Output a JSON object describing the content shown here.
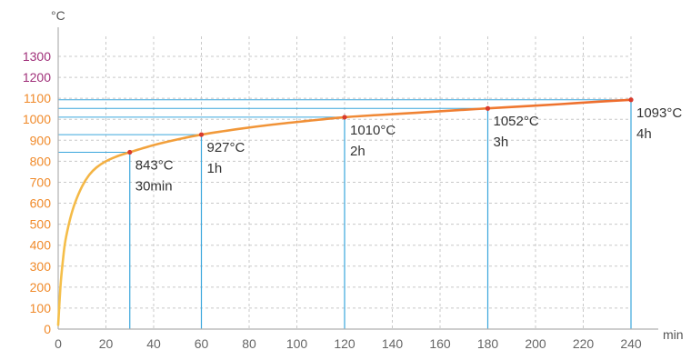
{
  "chart_data": {
    "type": "line",
    "x_unit": "min",
    "y_unit": "°C",
    "xlim": [
      0,
      240
    ],
    "ylim": [
      0,
      1300
    ],
    "x_ticks": [
      0,
      20,
      40,
      60,
      80,
      100,
      120,
      140,
      160,
      180,
      200,
      220,
      240
    ],
    "y_ticks": [
      0,
      100,
      200,
      300,
      400,
      500,
      600,
      700,
      800,
      900,
      1000,
      1100,
      1200,
      1300
    ],
    "grid": true,
    "series": [
      {
        "color_start": "#f5c04a",
        "color_end": "#ee6a2c",
        "points": [
          [
            0,
            20
          ],
          [
            1,
            210
          ],
          [
            2,
            330
          ],
          [
            3,
            420
          ],
          [
            5,
            525
          ],
          [
            7,
            600
          ],
          [
            10,
            680
          ],
          [
            13,
            735
          ],
          [
            16,
            770
          ],
          [
            20,
            800
          ],
          [
            25,
            825
          ],
          [
            30,
            843
          ],
          [
            40,
            877
          ],
          [
            50,
            904
          ],
          [
            60,
            927
          ],
          [
            75,
            953
          ],
          [
            90,
            975
          ],
          [
            105,
            993
          ],
          [
            120,
            1010
          ],
          [
            135,
            1021
          ],
          [
            150,
            1031
          ],
          [
            165,
            1042
          ],
          [
            180,
            1052
          ],
          [
            195,
            1062
          ],
          [
            210,
            1072
          ],
          [
            225,
            1083
          ],
          [
            240,
            1093
          ]
        ]
      }
    ],
    "annotations": [
      {
        "x": 30,
        "y": 843,
        "temp_label": "843°C",
        "time_label": "30min"
      },
      {
        "x": 60,
        "y": 927,
        "temp_label": "927°C",
        "time_label": "1h"
      },
      {
        "x": 120,
        "y": 1010,
        "temp_label": "1010°C",
        "time_label": "2h"
      },
      {
        "x": 180,
        "y": 1052,
        "temp_label": "1052°C",
        "time_label": "3h"
      },
      {
        "x": 240,
        "y": 1093,
        "temp_label": "1093°C",
        "time_label": "4h"
      }
    ],
    "colors": {
      "guide": "#3aa6dc",
      "point": "#d83a2c",
      "grid": "#c8c8c8",
      "axis": "#b0b0b0",
      "x_tick": "#666666",
      "y_tick_low": "#f08a2a",
      "y_tick_high": "#a0307a"
    }
  }
}
